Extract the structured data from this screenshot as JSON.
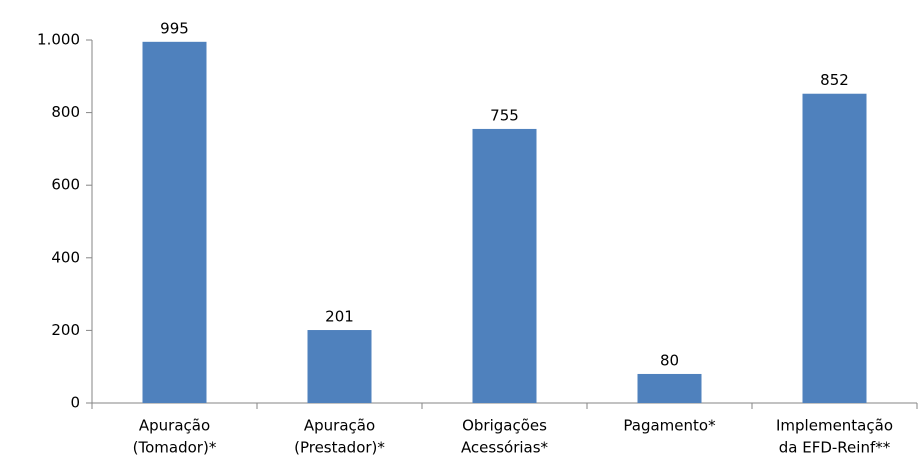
{
  "chart_data": {
    "type": "bar",
    "categories": [
      [
        "Apuração",
        "(Tomador)*"
      ],
      [
        "Apuração",
        "(Prestador)*"
      ],
      [
        "Obrigações",
        "Acessórias*"
      ],
      [
        "Pagamento*"
      ],
      [
        "Implementação",
        "da EFD-Reinf**"
      ]
    ],
    "values": [
      995,
      201,
      755,
      80,
      852
    ],
    "color": "#4f81bd",
    "ylim": [
      0,
      1000
    ],
    "yticks": [
      0,
      200,
      400,
      600,
      800,
      {
        "value": 1000,
        "label": "1.000"
      }
    ],
    "grid": false
  }
}
